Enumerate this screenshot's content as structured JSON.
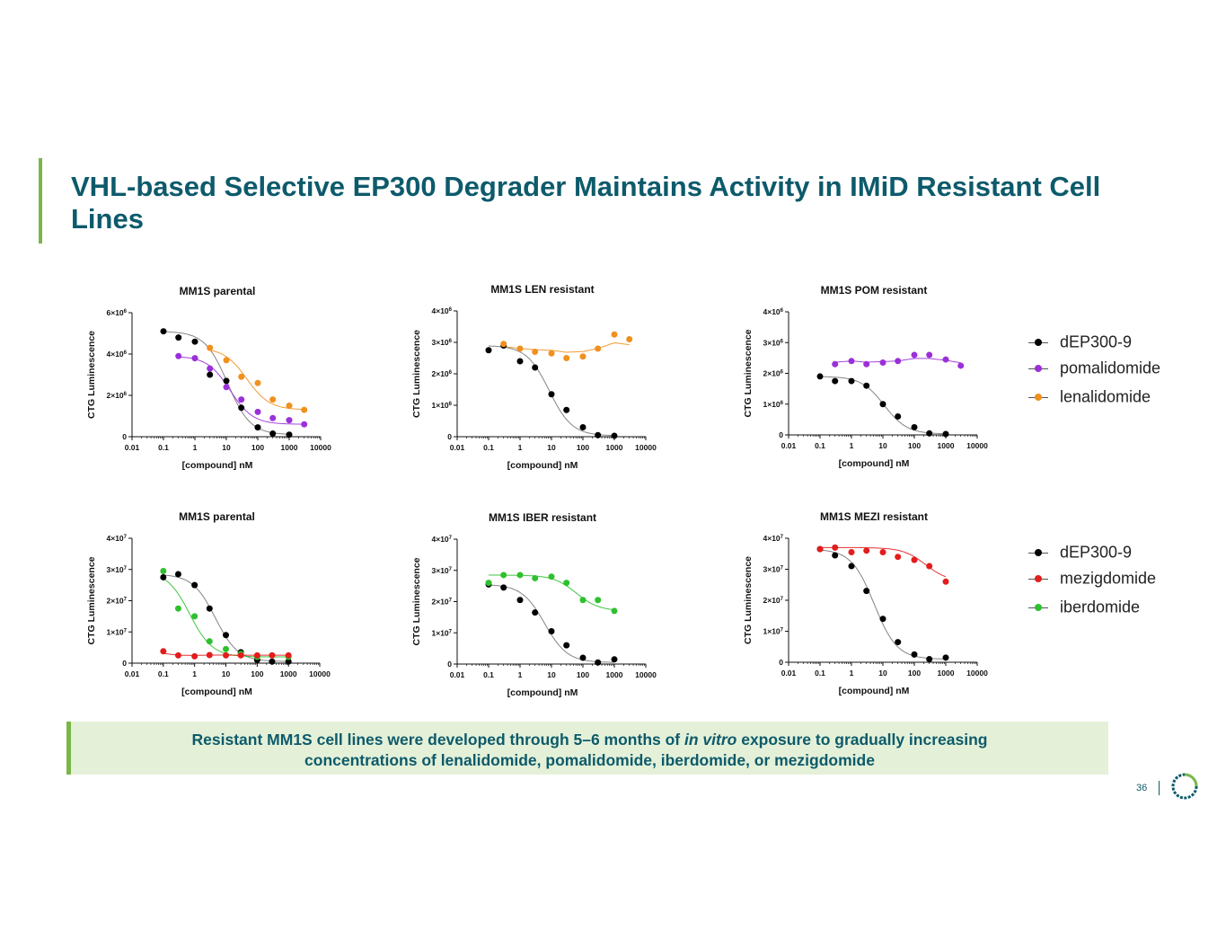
{
  "slide": {
    "title": "VHL-based Selective EP300 Degrader Maintains Activity in IMiD Resistant Cell Lines",
    "note": {
      "part1": "Resistant MM1S cell lines were developed through 5–6 months of ",
      "italic": "in vitro",
      "part2": " exposure to gradually increasing",
      "line2": "concentrations of lenalidomide, pomalidomide, iberdomide, or mezigdomide"
    },
    "page_number": "36"
  },
  "colors": {
    "title": "#0d5a6b",
    "accent_green": "#7ab648",
    "note_bg": "#e4f1d8",
    "dEP300-9": "#000000",
    "pomalidomide": "#9b30d9",
    "lenalidomide": "#f0901e",
    "mezigdomide": "#e31c1c",
    "iberdomide": "#2ec02e"
  },
  "legends": {
    "top": [
      {
        "label": "dEP300-9",
        "color": "#000000"
      },
      {
        "label": "pomalidomide",
        "color": "#9b30d9"
      },
      {
        "label": "lenalidomide",
        "color": "#f0901e"
      }
    ],
    "bottom": [
      {
        "label": "dEP300-9",
        "color": "#000000"
      },
      {
        "label": "mezigdomide",
        "color": "#e31c1c"
      },
      {
        "label": "iberdomide",
        "color": "#2ec02e"
      }
    ]
  },
  "chart_data": [
    {
      "type": "scatter",
      "title": "MM1S parental",
      "xlabel": "[compound] nM",
      "ylabel": "CTG Luminescence",
      "xscale": "log",
      "xlim": [
        0.01,
        10000
      ],
      "ylim": [
        0,
        6000000
      ],
      "x_ticks": [
        "0.01",
        "0.1",
        "1",
        "10",
        "100",
        "1000",
        "10000"
      ],
      "y_ticks": [
        "0",
        "2×10⁶",
        "4×10⁶",
        "6×10⁶"
      ],
      "grid": false,
      "series": [
        {
          "name": "dEP300-9",
          "color": "#000000",
          "x": [
            0.1,
            0.3,
            1,
            3,
            10,
            30,
            100,
            300,
            1000
          ],
          "y": [
            5100000,
            4800000,
            4600000,
            3000000,
            2700000,
            1400000,
            450000,
            150000,
            100000
          ]
        },
        {
          "name": "pomalidomide",
          "color": "#9b30d9",
          "x": [
            0.3,
            1,
            3,
            10,
            30,
            100,
            300,
            1000,
            3000
          ],
          "y": [
            3900000,
            3800000,
            3300000,
            2400000,
            1800000,
            1200000,
            900000,
            800000,
            600000
          ]
        },
        {
          "name": "lenalidomide",
          "color": "#f0901e",
          "x": [
            3,
            10,
            30,
            100,
            300,
            1000,
            3000
          ],
          "y": [
            4300000,
            3700000,
            2900000,
            2600000,
            1800000,
            1500000,
            1300000
          ]
        }
      ]
    },
    {
      "type": "scatter",
      "title": "MM1S LEN resistant",
      "xlabel": "[compound] nM",
      "ylabel": "CTG Luminescence",
      "xscale": "log",
      "xlim": [
        0.01,
        10000
      ],
      "ylim": [
        0,
        4000000
      ],
      "x_ticks": [
        "0.01",
        "0.1",
        "1",
        "10",
        "100",
        "1000",
        "10000"
      ],
      "y_ticks": [
        "0",
        "1×10⁶",
        "2×10⁶",
        "3×10⁶",
        "4×10⁶"
      ],
      "grid": false,
      "series": [
        {
          "name": "dEP300-9",
          "color": "#000000",
          "x": [
            0.1,
            0.3,
            1,
            3,
            10,
            30,
            100,
            300,
            1000
          ],
          "y": [
            2750000,
            2900000,
            2400000,
            2200000,
            1350000,
            850000,
            300000,
            50000,
            30000
          ]
        },
        {
          "name": "lenalidomide",
          "color": "#f0901e",
          "x": [
            0.3,
            1,
            3,
            10,
            30,
            100,
            300,
            1000,
            3000
          ],
          "y": [
            2950000,
            2800000,
            2700000,
            2650000,
            2500000,
            2550000,
            2800000,
            3250000,
            3100000
          ]
        }
      ]
    },
    {
      "type": "scatter",
      "title": "MM1S POM resistant",
      "xlabel": "[compound] nM",
      "ylabel": "CTG Luminescence",
      "xscale": "log",
      "xlim": [
        0.01,
        10000
      ],
      "ylim": [
        0,
        4000000
      ],
      "x_ticks": [
        "0.01",
        "0.1",
        "1",
        "10",
        "100",
        "1000",
        "10000"
      ],
      "y_ticks": [
        "0",
        "1×10⁶",
        "2×10⁶",
        "3×10⁶",
        "4×10⁶"
      ],
      "grid": false,
      "series": [
        {
          "name": "dEP300-9",
          "color": "#000000",
          "x": [
            0.1,
            0.3,
            1,
            3,
            10,
            30,
            100,
            300,
            1000
          ],
          "y": [
            1900000,
            1750000,
            1750000,
            1600000,
            1000000,
            600000,
            250000,
            50000,
            30000
          ]
        },
        {
          "name": "pomalidomide",
          "color": "#9b30d9",
          "x": [
            0.3,
            1,
            3,
            10,
            30,
            100,
            300,
            1000,
            3000
          ],
          "y": [
            2300000,
            2400000,
            2300000,
            2350000,
            2400000,
            2600000,
            2600000,
            2450000,
            2250000
          ]
        }
      ]
    },
    {
      "type": "scatter",
      "title": "MM1S parental",
      "xlabel": "[compound] nM",
      "ylabel": "CTG Luminescence",
      "xscale": "log",
      "xlim": [
        0.01,
        10000
      ],
      "ylim": [
        0,
        40000000
      ],
      "x_ticks": [
        "0.01",
        "0.1",
        "1",
        "10",
        "100",
        "1000",
        "10000"
      ],
      "y_ticks": [
        "0",
        "1×10⁷",
        "2×10⁷",
        "3×10⁷",
        "4×10⁷"
      ],
      "grid": false,
      "series": [
        {
          "name": "dEP300-9",
          "color": "#000000",
          "x": [
            0.1,
            0.3,
            1,
            3,
            10,
            30,
            100,
            300,
            1000
          ],
          "y": [
            27500000,
            28500000,
            25000000,
            17500000,
            9000000,
            3500000,
            1000000,
            500000,
            500000
          ]
        },
        {
          "name": "iberdomide",
          "color": "#2ec02e",
          "x": [
            0.1,
            0.3,
            1,
            3,
            10,
            30,
            100,
            300,
            1000
          ],
          "y": [
            29500000,
            17500000,
            15000000,
            7000000,
            4500000,
            3000000,
            2000000,
            2500000,
            2000000
          ]
        },
        {
          "name": "mezigdomide",
          "color": "#e31c1c",
          "x": [
            0.1,
            0.3,
            1,
            3,
            10,
            30,
            100,
            300,
            1000
          ],
          "y": [
            3800000,
            2500000,
            2200000,
            2600000,
            2500000,
            2500000,
            2500000,
            2500000,
            2500000
          ]
        }
      ]
    },
    {
      "type": "scatter",
      "title": "MM1S IBER resistant",
      "xlabel": "[compound] nM",
      "ylabel": "CTG Luminescence",
      "xscale": "log",
      "xlim": [
        0.01,
        10000
      ],
      "ylim": [
        0,
        40000000
      ],
      "x_ticks": [
        "0.01",
        "0.1",
        "1",
        "10",
        "100",
        "1000",
        "10000"
      ],
      "y_ticks": [
        "0",
        "1×10⁷",
        "2×10⁷",
        "3×10⁷",
        "4×10⁷"
      ],
      "grid": false,
      "series": [
        {
          "name": "dEP300-9",
          "color": "#000000",
          "x": [
            0.1,
            0.3,
            1,
            3,
            10,
            30,
            100,
            300,
            1000
          ],
          "y": [
            25500000,
            24500000,
            20500000,
            16500000,
            10500000,
            6000000,
            2000000,
            500000,
            1500000
          ]
        },
        {
          "name": "iberdomide",
          "color": "#2ec02e",
          "x": [
            0.1,
            0.3,
            1,
            3,
            10,
            30,
            100,
            300,
            1000
          ],
          "y": [
            26000000,
            28500000,
            28500000,
            27500000,
            28000000,
            26000000,
            20500000,
            20500000,
            17000000
          ]
        }
      ]
    },
    {
      "type": "scatter",
      "title": "MM1S MEZI resistant",
      "xlabel": "[compound] nM",
      "ylabel": "CTG Luminescence",
      "xscale": "log",
      "xlim": [
        0.01,
        10000
      ],
      "ylim": [
        0,
        40000000
      ],
      "x_ticks": [
        "0.01",
        "0.1",
        "1",
        "10",
        "100",
        "1000",
        "10000"
      ],
      "y_ticks": [
        "0",
        "1×10⁷",
        "2×10⁷",
        "3×10⁷",
        "4×10⁷"
      ],
      "grid": false,
      "series": [
        {
          "name": "dEP300-9",
          "color": "#000000",
          "x": [
            0.1,
            0.3,
            1,
            3,
            10,
            30,
            100,
            300,
            1000
          ],
          "y": [
            36500000,
            34500000,
            31000000,
            23000000,
            14000000,
            6500000,
            2500000,
            1000000,
            1500000
          ]
        },
        {
          "name": "mezigdomide",
          "color": "#e31c1c",
          "x": [
            0.1,
            0.3,
            1,
            3,
            10,
            30,
            100,
            300,
            1000
          ],
          "y": [
            36500000,
            37000000,
            35500000,
            36000000,
            35500000,
            34000000,
            33000000,
            31000000,
            26000000
          ]
        }
      ]
    }
  ]
}
